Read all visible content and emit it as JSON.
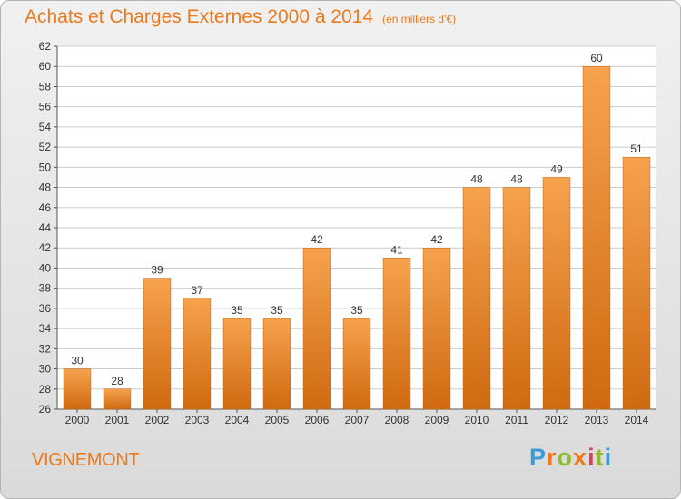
{
  "header": {
    "title": "Achats et Charges Externes 2000 à 2014",
    "subtitle": "(en milliers d'€)"
  },
  "footer": {
    "commune": "VIGNEMONT",
    "logo_text": "Proxiti"
  },
  "colors": {
    "title": "#ea7a1d",
    "bar_top": "#f7a24e",
    "bar_bottom": "#cf6a10",
    "grid": "#cccccc"
  },
  "chart_data": {
    "type": "bar",
    "title": "Achats et Charges Externes 2000 à 2014",
    "subtitle": "(en milliers d'€)",
    "xlabel": "",
    "ylabel": "",
    "categories": [
      "2000",
      "2001",
      "2002",
      "2003",
      "2004",
      "2005",
      "2006",
      "2007",
      "2008",
      "2009",
      "2010",
      "2011",
      "2012",
      "2013",
      "2014"
    ],
    "values": [
      30,
      28,
      39,
      37,
      35,
      35,
      42,
      35,
      41,
      42,
      48,
      48,
      49,
      60,
      51
    ],
    "ylim": [
      26,
      62
    ],
    "ytick_step": 2,
    "grid": true,
    "data_labels": true
  }
}
